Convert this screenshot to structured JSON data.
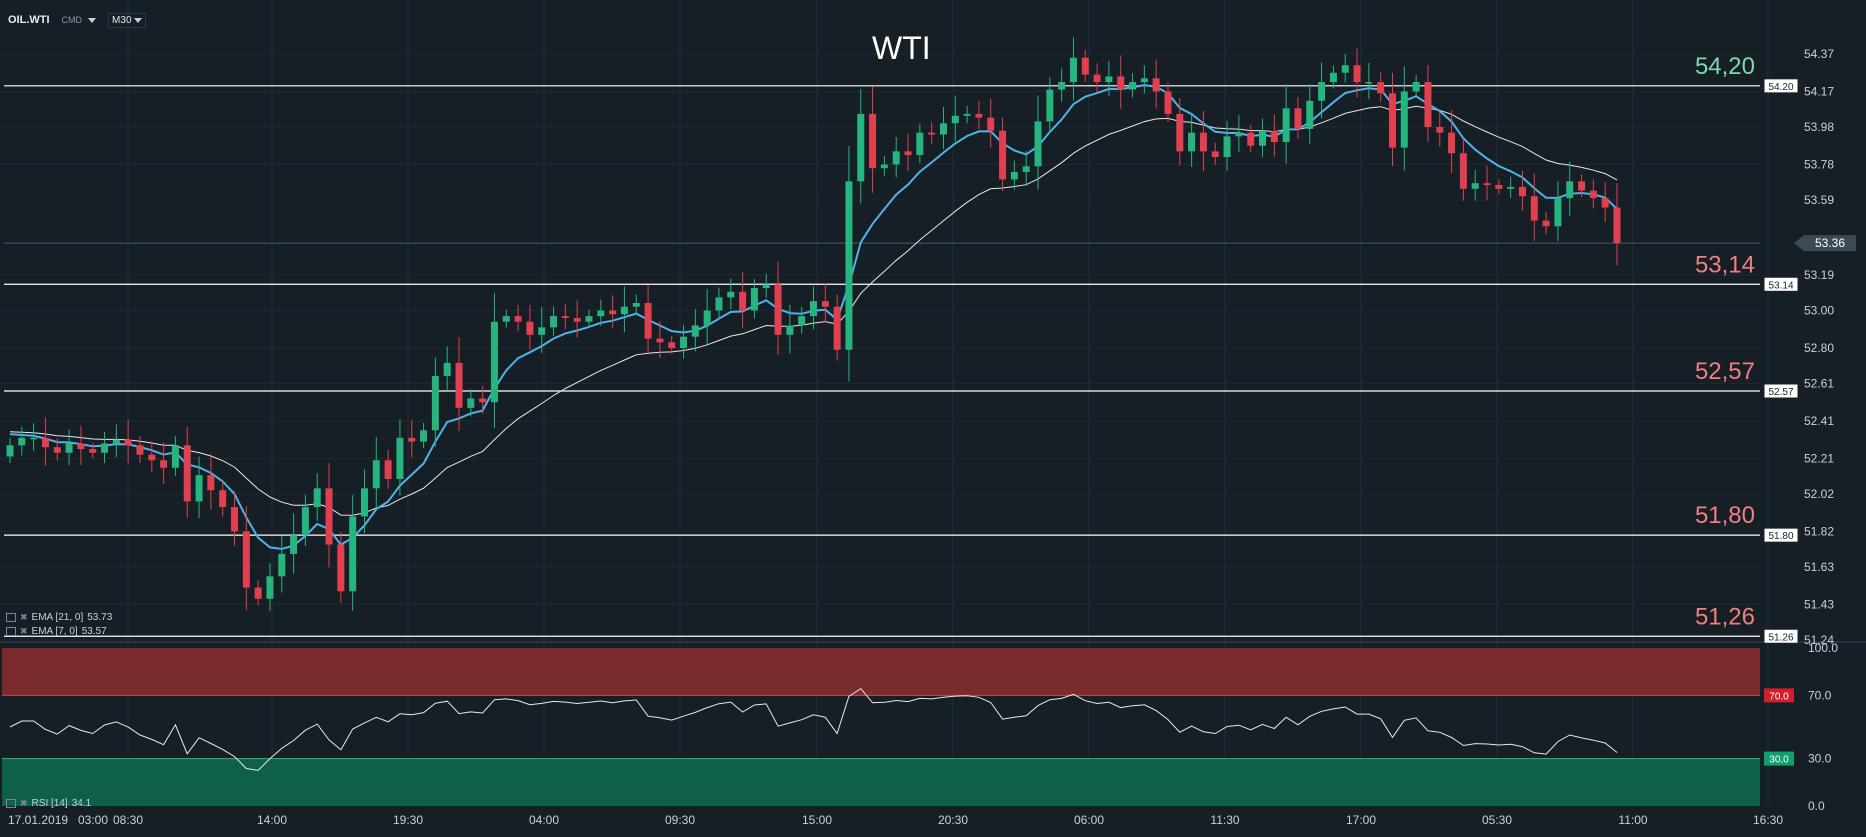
{
  "toolbar": {
    "symbol": "OIL.WTI",
    "mode": "CMD",
    "timeframe": "M30"
  },
  "title": "WTI",
  "indicators": {
    "ema21": {
      "label": "EMA [21, 0]",
      "value": "53.73"
    },
    "ema7": {
      "label": "EMA [7, 0]",
      "value": "53.57"
    },
    "rsi": {
      "label": "RSI [14]",
      "value": "34.1"
    }
  },
  "colors": {
    "background": "#171f26",
    "up": "#26b47f",
    "down": "#e0404f",
    "ema_fast": "#4fb3e8",
    "ema_slow": "#e8e8e8",
    "overbought": "#7a2b2f",
    "oversold": "#0e6048",
    "level_text_red": "#f07f7f",
    "level_text_green": "#7fd8b0"
  },
  "chart_data": {
    "type": "candlestick",
    "instrument": "OIL.WTI",
    "ylim": [
      51.2,
      54.45
    ],
    "y_ticks": [
      "54.37",
      "54.17",
      "53.98",
      "53.78",
      "53.59",
      "53.19",
      "53.00",
      "52.80",
      "52.61",
      "52.41",
      "52.21",
      "52.02",
      "51.82",
      "51.63",
      "51.43",
      "51.24"
    ],
    "x_ticks": [
      "17.01.2019",
      "03:00",
      "08:30",
      "14:00",
      "19:30",
      "04:00",
      "09:30",
      "15:00",
      "20:30",
      "06:00",
      "11:30",
      "17:00",
      "05:30",
      "11:00",
      "16:30"
    ],
    "levels": [
      {
        "value": 54.2,
        "label": "54,20",
        "tag": "54.20",
        "color": "green"
      },
      {
        "value": 53.14,
        "label": "53,14",
        "tag": "53.14",
        "color": "red"
      },
      {
        "value": 52.57,
        "label": "52,57",
        "tag": "52.57",
        "color": "red"
      },
      {
        "value": 51.8,
        "label": "51,80",
        "tag": "51.80",
        "color": "red"
      },
      {
        "value": 51.26,
        "label": "51,26",
        "tag": "51.26",
        "color": "red"
      }
    ],
    "current_price": {
      "value": 53.36,
      "tag": "53.36"
    },
    "closes": [
      52.28,
      52.32,
      52.32,
      52.27,
      52.24,
      52.29,
      52.26,
      52.24,
      52.29,
      52.31,
      52.28,
      52.23,
      52.2,
      52.16,
      52.28,
      51.98,
      52.12,
      52.04,
      51.95,
      51.82,
      51.52,
      51.46,
      51.58,
      51.7,
      51.8,
      51.95,
      52.05,
      51.75,
      51.5,
      51.9,
      52.05,
      52.2,
      52.1,
      52.32,
      52.3,
      52.36,
      52.65,
      52.72,
      52.48,
      52.53,
      52.51,
      52.94,
      52.97,
      52.94,
      52.87,
      52.91,
      52.97,
      52.96,
      52.94,
      52.97,
      53.0,
      52.98,
      53.02,
      53.04,
      52.85,
      52.83,
      52.8,
      52.86,
      52.92,
      53.0,
      53.07,
      53.1,
      53.0,
      53.12,
      53.14,
      52.87,
      52.92,
      52.97,
      53.05,
      53.02,
      52.79,
      53.69,
      54.05,
      53.76,
      53.78,
      53.85,
      53.83,
      53.95,
      53.94,
      54.0,
      54.04,
      54.05,
      54.03,
      53.96,
      53.7,
      53.74,
      53.77,
      54.01,
      54.18,
      54.22,
      54.35,
      54.26,
      54.22,
      54.25,
      54.18,
      54.22,
      54.24,
      54.17,
      54.05,
      53.85,
      53.95,
      53.85,
      53.82,
      53.93,
      53.95,
      53.88,
      53.96,
      53.9,
      54.08,
      53.97,
      54.12,
      54.22,
      54.27,
      54.31,
      54.22,
      54.22,
      54.16,
      53.87,
      54.17,
      54.22,
      53.98,
      53.95,
      53.84,
      53.65,
      53.68,
      53.67,
      53.65,
      53.66,
      53.61,
      53.48,
      53.45,
      53.6,
      53.69,
      53.64,
      53.6,
      53.55,
      53.36
    ],
    "ema_fast_last": 53.57,
    "ema_slow_last": 53.73,
    "rsi": {
      "ylim": [
        0,
        100
      ],
      "y_ticks": [
        "100.0",
        "70.0",
        "30.0",
        "0.0"
      ],
      "overbought": {
        "value": 70,
        "tag": "70.0"
      },
      "oversold": {
        "value": 30,
        "tag": "30.0"
      },
      "last": 34.1
    }
  }
}
